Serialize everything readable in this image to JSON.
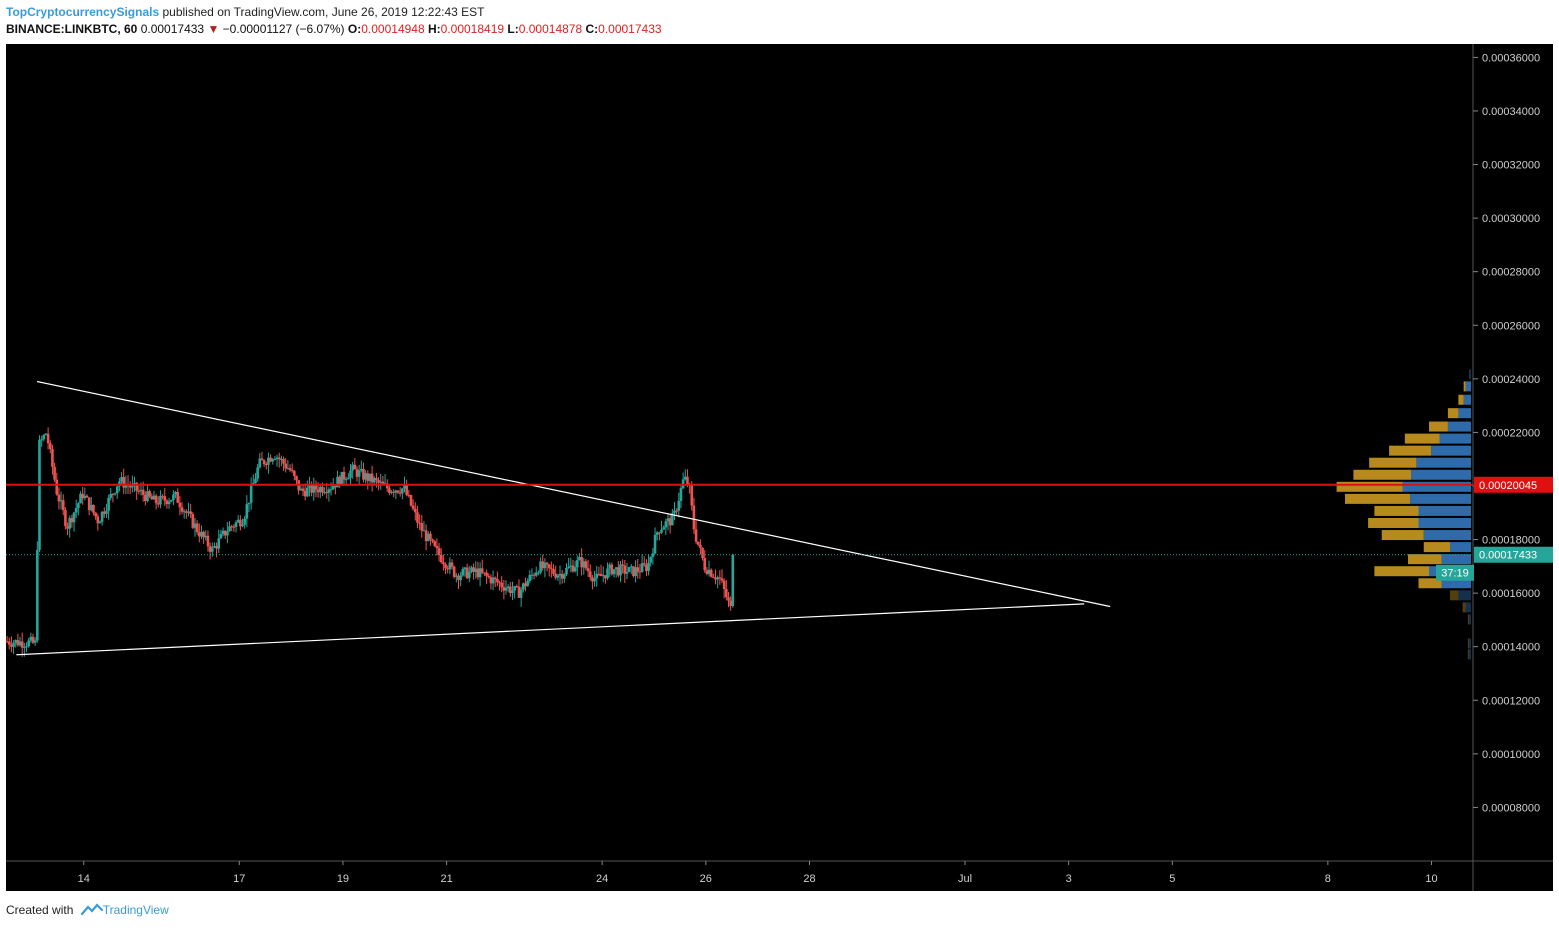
{
  "header": {
    "author": "TopCryptocurrencySignals",
    "published_text": "published on TradingView.com, June 26, 2019 12:22:43 EST",
    "symbol": "BINANCE:LINKBTC, 60",
    "last": "0.00017433",
    "change_arrow": "▼",
    "change": "−0.00001127 (−6.07%)",
    "o_label": "O:",
    "o": "0.00014948",
    "h_label": "H:",
    "h": "0.00018419",
    "l_label": "L:",
    "l": "0.00014878",
    "c_label": "C:",
    "c": "0.00017433"
  },
  "footer": {
    "created_with": "Created with",
    "brand": "TradingView"
  },
  "colors": {
    "background": "#000000",
    "candle_up": "#26a69a",
    "candle_down": "#ef5350",
    "trendline": "#ffffff",
    "hline": "#e01010",
    "vp_up": "#2d6bab",
    "vp_down": "#b8891c",
    "axis_text": "#d0d0d0",
    "last_price_badge": "#26a69a"
  },
  "chart_data": {
    "type": "candlestick",
    "timeframe": "60",
    "y_axis": {
      "ylim": [
        6e-05,
        0.000365
      ],
      "ticks": [
        "0.00036000",
        "0.00034000",
        "0.00032000",
        "0.00030000",
        "0.00028000",
        "0.00026000",
        "0.00024000",
        "0.00022000",
        "0.00020000",
        "0.00018000",
        "0.00016000",
        "0.00014000",
        "0.00012000",
        "0.00010000",
        "0.00008000"
      ],
      "tick_values": [
        0.00036,
        0.00034,
        0.00032,
        0.0003,
        0.00028,
        0.00026,
        0.00024,
        0.00022,
        0.0002,
        0.00018,
        0.00016,
        0.00014,
        0.00012,
        0.0001,
        8e-05
      ]
    },
    "x_axis": {
      "xlim": [
        12.5,
        40.8
      ],
      "ticks": [
        {
          "label": "14",
          "day": 14
        },
        {
          "label": "17",
          "day": 17
        },
        {
          "label": "19",
          "day": 19
        },
        {
          "label": "21",
          "day": 21
        },
        {
          "label": "24",
          "day": 24
        },
        {
          "label": "26",
          "day": 26
        },
        {
          "label": "28",
          "day": 28
        },
        {
          "label": "Jul",
          "day": 31
        },
        {
          "label": "3",
          "day": 33
        },
        {
          "label": "5",
          "day": 35
        },
        {
          "label": "8",
          "day": 38
        },
        {
          "label": "10",
          "day": 40
        }
      ]
    },
    "price_path": [
      [
        12.5,
        0.000142
      ],
      [
        13.0,
        0.0001415
      ],
      [
        13.1,
        0.000141
      ],
      [
        13.15,
        0.000215
      ],
      [
        13.3,
        0.00022
      ],
      [
        13.5,
        0.000198
      ],
      [
        13.7,
        0.000185
      ],
      [
        14.0,
        0.000197
      ],
      [
        14.3,
        0.000187
      ],
      [
        14.7,
        0.000202
      ],
      [
        15.0,
        0.000199
      ],
      [
        15.4,
        0.000194
      ],
      [
        15.8,
        0.000196
      ],
      [
        16.2,
        0.000184
      ],
      [
        16.5,
        0.000176
      ],
      [
        16.8,
        0.000184
      ],
      [
        17.1,
        0.000188
      ],
      [
        17.4,
        0.000208
      ],
      [
        17.7,
        0.000212
      ],
      [
        18.0,
        0.000206
      ],
      [
        18.2,
        0.000198
      ],
      [
        18.5,
        0.000199
      ],
      [
        18.8,
        0.0002
      ],
      [
        19.2,
        0.000206
      ],
      [
        19.5,
        0.000203
      ],
      [
        19.9,
        0.000199
      ],
      [
        20.2,
        0.000199
      ],
      [
        20.5,
        0.000185
      ],
      [
        20.8,
        0.000176
      ],
      [
        21.2,
        0.000167
      ],
      [
        21.6,
        0.000168
      ],
      [
        22.0,
        0.000164
      ],
      [
        22.4,
        0.00016
      ],
      [
        22.8,
        0.00017
      ],
      [
        23.2,
        0.000167
      ],
      [
        23.6,
        0.000172
      ],
      [
        23.9,
        0.000165
      ],
      [
        24.2,
        0.000169
      ],
      [
        24.6,
        0.000168
      ],
      [
        24.9,
        0.00017
      ],
      [
        25.1,
        0.000184
      ],
      [
        25.4,
        0.000188
      ],
      [
        25.6,
        0.000203
      ],
      [
        25.7,
        0.0002
      ],
      [
        25.8,
        0.000183
      ],
      [
        26.0,
        0.00017
      ],
      [
        26.3,
        0.000165
      ],
      [
        26.5,
        0.000154
      ],
      [
        26.55,
        0.000174
      ]
    ],
    "last_price": 0.00017433,
    "last_price_label": "0.00017433",
    "countdown": "37:19",
    "hline": {
      "value": 0.00020045,
      "label": "0.00020045"
    },
    "trendlines": [
      {
        "name": "upper",
        "from": {
          "x": 13.1,
          "y": 0.000239
        },
        "to": {
          "x": 33.8,
          "y": 0.000155
        }
      },
      {
        "name": "lower",
        "from": {
          "x": 12.7,
          "y": 0.000137
        },
        "to": {
          "x": 33.3,
          "y": 0.000156
        }
      }
    ],
    "volume_profile": [
      {
        "price": 0.0002415,
        "up": 0.02,
        "down": 0.0
      },
      {
        "price": 0.000237,
        "up": 0.05,
        "down": 0.02
      },
      {
        "price": 0.000232,
        "up": 0.07,
        "down": 0.05
      },
      {
        "price": 0.000227,
        "up": 0.12,
        "down": 0.1
      },
      {
        "price": 0.000222,
        "up": 0.22,
        "down": 0.18
      },
      {
        "price": 0.0002175,
        "up": 0.3,
        "down": 0.33
      },
      {
        "price": 0.000213,
        "up": 0.38,
        "down": 0.4
      },
      {
        "price": 0.0002085,
        "up": 0.52,
        "down": 0.45
      },
      {
        "price": 0.000204,
        "up": 0.57,
        "down": 0.55
      },
      {
        "price": 0.0001995,
        "up": 0.65,
        "down": 0.63
      },
      {
        "price": 0.000195,
        "up": 0.58,
        "down": 0.62
      },
      {
        "price": 0.0001905,
        "up": 0.5,
        "down": 0.42
      },
      {
        "price": 0.000186,
        "up": 0.5,
        "down": 0.48
      },
      {
        "price": 0.0001815,
        "up": 0.45,
        "down": 0.4
      },
      {
        "price": 0.000177,
        "up": 0.2,
        "down": 0.25
      },
      {
        "price": 0.0001725,
        "up": 0.28,
        "down": 0.32
      },
      {
        "price": 0.000168,
        "up": 0.4,
        "down": 0.52
      },
      {
        "price": 0.0001635,
        "up": 0.28,
        "down": 0.22
      },
      {
        "price": 0.000159,
        "up": 0.12,
        "down": 0.08
      },
      {
        "price": 0.0001545,
        "up": 0.05,
        "down": 0.03
      },
      {
        "price": 0.00015,
        "up": 0.02,
        "down": 0.01
      },
      {
        "price": 0.000141,
        "up": 0.02,
        "down": 0.01
      },
      {
        "price": 0.000137,
        "up": 0.02,
        "down": 0.01
      }
    ]
  }
}
